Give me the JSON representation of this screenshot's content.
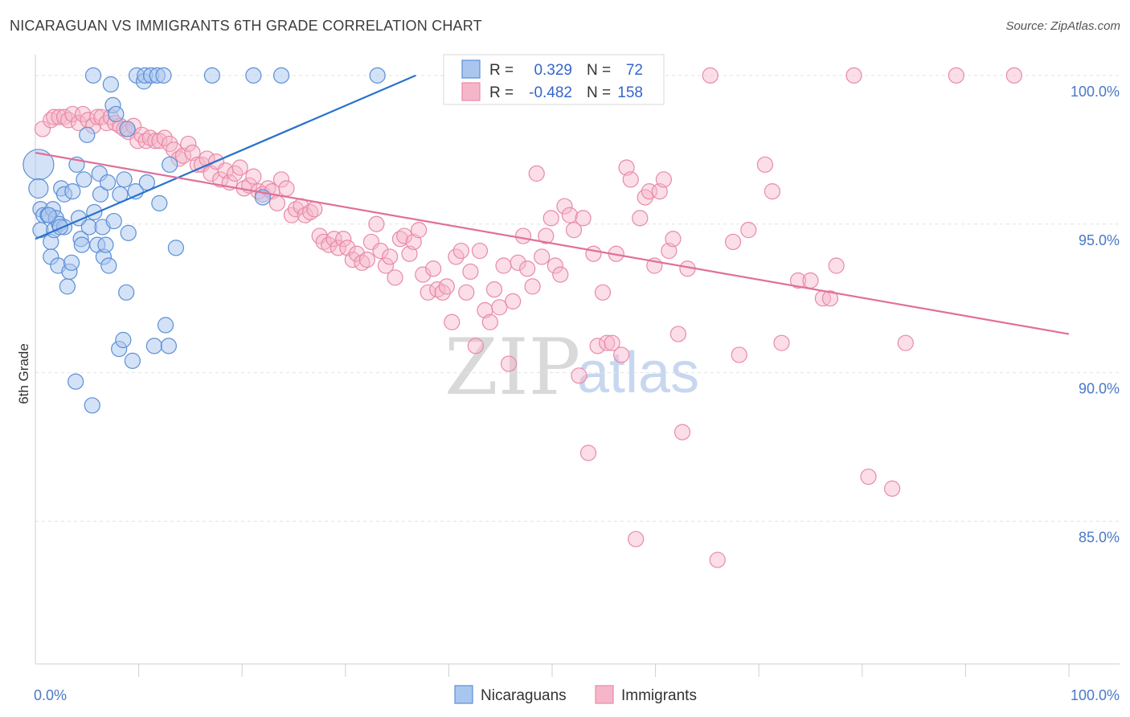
{
  "header": {
    "title": "NICARAGUAN VS IMMIGRANTS 6TH GRADE CORRELATION CHART",
    "source": "Source: ZipAtlas.com"
  },
  "legend": {
    "r_label": "R =",
    "n_label": "N =",
    "series1": {
      "r": "0.329",
      "n": "72"
    },
    "series2": {
      "r": "-0.482",
      "n": "158"
    }
  },
  "watermark": {
    "part1": "ZIP",
    "part2": "atlas"
  },
  "colors": {
    "blue_fill": "#a9c6ef",
    "blue_stroke": "#5b8fd6",
    "blue_line": "#2a72cc",
    "pink_fill": "#f6b6c9",
    "pink_stroke": "#e88aa8",
    "pink_line": "#e0709a",
    "tick_text": "#4a78c8",
    "grid": "#e3e3e3"
  },
  "chart_data": {
    "type": "scatter",
    "title": "NICARAGUAN VS IMMIGRANTS 6TH GRADE CORRELATION CHART",
    "xlabel": "",
    "ylabel": "6th Grade",
    "xlim": [
      0,
      100
    ],
    "ylim": [
      80.2,
      100.7
    ],
    "x_tick_labels": [
      "0.0%",
      "100.0%"
    ],
    "y_ticks": [
      85,
      90,
      95,
      100
    ],
    "y_tick_labels": [
      "85.0%",
      "90.0%",
      "95.0%",
      "100.0%"
    ],
    "grid": "horizontal dashed",
    "legend_position": "top-center",
    "series": [
      {
        "name": "Nicaraguans",
        "r": 0.329,
        "n": 72,
        "trend": {
          "x": [
            0,
            36.8
          ],
          "y": [
            94.5,
            100.0
          ]
        },
        "points": [
          [
            0.3,
            97.0
          ],
          [
            0.3,
            96.2
          ],
          [
            0.5,
            95.5
          ],
          [
            0.5,
            94.8
          ],
          [
            0.8,
            95.3
          ],
          [
            1.2,
            95.3
          ],
          [
            1.5,
            94.4
          ],
          [
            1.5,
            93.9
          ],
          [
            1.7,
            95.5
          ],
          [
            1.8,
            94.8
          ],
          [
            2.0,
            95.2
          ],
          [
            2.2,
            93.6
          ],
          [
            2.3,
            95.0
          ],
          [
            2.5,
            96.2
          ],
          [
            2.8,
            96.0
          ],
          [
            2.8,
            94.9
          ],
          [
            3.1,
            92.9
          ],
          [
            3.3,
            93.4
          ],
          [
            3.5,
            93.7
          ],
          [
            3.6,
            96.1
          ],
          [
            3.9,
            89.7
          ],
          [
            4.0,
            97.0
          ],
          [
            4.2,
            95.2
          ],
          [
            4.4,
            94.5
          ],
          [
            4.5,
            94.3
          ],
          [
            4.7,
            96.5
          ],
          [
            5.0,
            98.0
          ],
          [
            5.2,
            94.9
          ],
          [
            5.5,
            88.9
          ],
          [
            5.6,
            100.0
          ],
          [
            5.7,
            95.4
          ],
          [
            6.0,
            94.3
          ],
          [
            6.2,
            96.7
          ],
          [
            6.3,
            96.0
          ],
          [
            6.5,
            94.9
          ],
          [
            6.6,
            93.9
          ],
          [
            7.0,
            96.4
          ],
          [
            7.1,
            93.6
          ],
          [
            7.3,
            99.7
          ],
          [
            7.5,
            99.0
          ],
          [
            7.6,
            95.1
          ],
          [
            7.8,
            98.7
          ],
          [
            8.1,
            90.8
          ],
          [
            8.2,
            96.0
          ],
          [
            8.5,
            91.1
          ],
          [
            8.6,
            96.5
          ],
          [
            8.8,
            92.7
          ],
          [
            8.9,
            98.2
          ],
          [
            9.0,
            94.7
          ],
          [
            9.4,
            90.4
          ],
          [
            9.7,
            96.1
          ],
          [
            9.8,
            100.0
          ],
          [
            10.5,
            99.8
          ],
          [
            10.6,
            100.0
          ],
          [
            10.8,
            96.4
          ],
          [
            11.2,
            100.0
          ],
          [
            11.5,
            90.9
          ],
          [
            11.8,
            100.0
          ],
          [
            12.0,
            95.7
          ],
          [
            12.4,
            100.0
          ],
          [
            12.6,
            91.6
          ],
          [
            12.9,
            90.9
          ],
          [
            13.0,
            97.0
          ],
          [
            13.6,
            94.2
          ],
          [
            17.1,
            100.0
          ],
          [
            21.1,
            100.0
          ],
          [
            22.0,
            95.9
          ],
          [
            23.8,
            100.0
          ],
          [
            33.1,
            100.0
          ],
          [
            1.3,
            95.3
          ],
          [
            2.4,
            94.9
          ],
          [
            6.8,
            94.3
          ]
        ]
      },
      {
        "name": "Immigrants",
        "r": -0.482,
        "n": 158,
        "trend": {
          "x": [
            0,
            100
          ],
          "y": [
            97.4,
            91.3
          ]
        },
        "points": [
          [
            0.7,
            98.2
          ],
          [
            1.5,
            98.5
          ],
          [
            1.8,
            98.6
          ],
          [
            2.3,
            98.6
          ],
          [
            2.8,
            98.6
          ],
          [
            3.2,
            98.5
          ],
          [
            3.6,
            98.7
          ],
          [
            4.2,
            98.4
          ],
          [
            4.6,
            98.7
          ],
          [
            5.1,
            98.5
          ],
          [
            5.6,
            98.3
          ],
          [
            6.0,
            98.6
          ],
          [
            6.4,
            98.6
          ],
          [
            6.9,
            98.4
          ],
          [
            7.3,
            98.6
          ],
          [
            7.7,
            98.4
          ],
          [
            8.2,
            98.3
          ],
          [
            8.6,
            98.2
          ],
          [
            9.0,
            98.1
          ],
          [
            9.5,
            98.3
          ],
          [
            9.9,
            97.8
          ],
          [
            10.3,
            98.0
          ],
          [
            10.7,
            97.8
          ],
          [
            11.1,
            97.9
          ],
          [
            11.6,
            97.8
          ],
          [
            12.0,
            97.8
          ],
          [
            12.5,
            97.9
          ],
          [
            13.0,
            97.7
          ],
          [
            13.4,
            97.5
          ],
          [
            13.9,
            97.2
          ],
          [
            14.3,
            97.3
          ],
          [
            14.8,
            97.7
          ],
          [
            15.2,
            97.4
          ],
          [
            15.7,
            97.0
          ],
          [
            16.1,
            97.0
          ],
          [
            16.6,
            97.2
          ],
          [
            17.0,
            96.7
          ],
          [
            17.5,
            97.1
          ],
          [
            17.9,
            96.5
          ],
          [
            18.4,
            96.8
          ],
          [
            18.8,
            96.4
          ],
          [
            19.3,
            96.7
          ],
          [
            19.8,
            96.9
          ],
          [
            20.2,
            96.2
          ],
          [
            20.7,
            96.3
          ],
          [
            21.1,
            96.6
          ],
          [
            21.6,
            96.1
          ],
          [
            22.0,
            96.0
          ],
          [
            22.5,
            96.2
          ],
          [
            22.9,
            96.1
          ],
          [
            23.4,
            95.7
          ],
          [
            23.8,
            96.5
          ],
          [
            24.3,
            96.2
          ],
          [
            24.8,
            95.3
          ],
          [
            25.2,
            95.5
          ],
          [
            25.7,
            95.6
          ],
          [
            26.1,
            95.3
          ],
          [
            26.6,
            95.4
          ],
          [
            27.0,
            95.5
          ],
          [
            27.5,
            94.6
          ],
          [
            27.9,
            94.4
          ],
          [
            28.4,
            94.3
          ],
          [
            28.9,
            94.5
          ],
          [
            29.3,
            94.2
          ],
          [
            29.8,
            94.5
          ],
          [
            30.2,
            94.2
          ],
          [
            30.7,
            93.8
          ],
          [
            31.1,
            94.0
          ],
          [
            31.6,
            93.7
          ],
          [
            32.1,
            93.8
          ],
          [
            32.5,
            94.4
          ],
          [
            33.0,
            95.0
          ],
          [
            33.4,
            94.1
          ],
          [
            33.9,
            93.6
          ],
          [
            34.3,
            93.9
          ],
          [
            34.8,
            93.2
          ],
          [
            35.3,
            94.5
          ],
          [
            35.7,
            94.6
          ],
          [
            36.2,
            94.0
          ],
          [
            36.6,
            94.4
          ],
          [
            37.1,
            94.8
          ],
          [
            37.5,
            93.3
          ],
          [
            38.0,
            92.7
          ],
          [
            38.5,
            93.5
          ],
          [
            38.9,
            92.8
          ],
          [
            39.4,
            92.7
          ],
          [
            39.8,
            92.9
          ],
          [
            40.3,
            91.7
          ],
          [
            40.7,
            93.9
          ],
          [
            41.2,
            94.1
          ],
          [
            41.7,
            92.7
          ],
          [
            42.1,
            93.4
          ],
          [
            42.6,
            90.9
          ],
          [
            43.0,
            94.1
          ],
          [
            43.5,
            92.1
          ],
          [
            44.0,
            91.7
          ],
          [
            44.4,
            92.8
          ],
          [
            44.9,
            92.2
          ],
          [
            45.3,
            93.6
          ],
          [
            45.8,
            90.3
          ],
          [
            46.2,
            92.4
          ],
          [
            46.7,
            93.7
          ],
          [
            47.2,
            94.6
          ],
          [
            47.6,
            93.5
          ],
          [
            48.1,
            92.9
          ],
          [
            48.5,
            96.7
          ],
          [
            49.0,
            93.9
          ],
          [
            49.4,
            94.6
          ],
          [
            49.9,
            95.2
          ],
          [
            50.3,
            93.6
          ],
          [
            50.8,
            93.3
          ],
          [
            51.2,
            95.6
          ],
          [
            51.7,
            95.3
          ],
          [
            52.1,
            94.8
          ],
          [
            52.6,
            89.9
          ],
          [
            53.0,
            95.2
          ],
          [
            53.5,
            87.3
          ],
          [
            54.0,
            94.0
          ],
          [
            54.4,
            90.9
          ],
          [
            54.9,
            92.7
          ],
          [
            55.3,
            91.0
          ],
          [
            55.8,
            91.0
          ],
          [
            56.2,
            94.0
          ],
          [
            56.7,
            90.6
          ],
          [
            57.2,
            96.9
          ],
          [
            57.6,
            96.5
          ],
          [
            58.1,
            84.4
          ],
          [
            58.5,
            95.2
          ],
          [
            59.0,
            95.9
          ],
          [
            59.4,
            96.1
          ],
          [
            59.9,
            93.6
          ],
          [
            60.4,
            96.1
          ],
          [
            60.8,
            96.5
          ],
          [
            61.3,
            94.1
          ],
          [
            61.7,
            94.5
          ],
          [
            62.2,
            91.3
          ],
          [
            62.6,
            88.0
          ],
          [
            63.1,
            93.5
          ],
          [
            65.3,
            100.0
          ],
          [
            67.5,
            94.4
          ],
          [
            68.1,
            90.6
          ],
          [
            69.0,
            94.8
          ],
          [
            70.6,
            97.0
          ],
          [
            71.3,
            96.1
          ],
          [
            72.2,
            91.0
          ],
          [
            73.8,
            93.1
          ],
          [
            75.0,
            93.1
          ],
          [
            76.2,
            92.5
          ],
          [
            76.9,
            92.5
          ],
          [
            77.5,
            93.6
          ],
          [
            79.2,
            100.0
          ],
          [
            80.6,
            86.5
          ],
          [
            82.9,
            86.1
          ],
          [
            84.2,
            91.0
          ],
          [
            89.1,
            100.0
          ],
          [
            94.7,
            100.0
          ],
          [
            66.0,
            83.7
          ]
        ]
      }
    ]
  },
  "bottom_legend": {
    "item1": "Nicaraguans",
    "item2": "Immigrants"
  }
}
